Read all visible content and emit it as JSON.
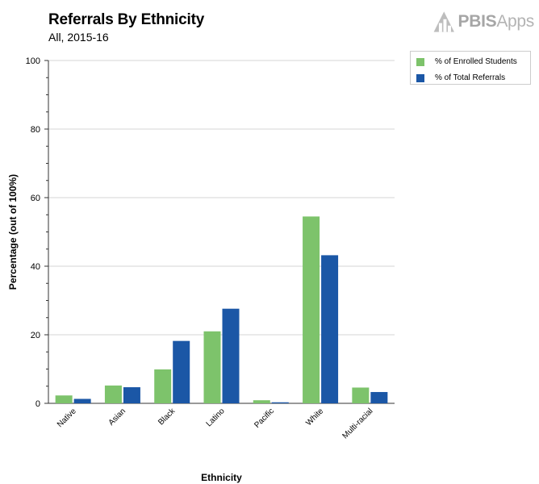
{
  "chart_data": {
    "type": "bar",
    "title": "Referrals By Ethnicity",
    "subtitle": "All, 2015-16",
    "xlabel": "Ethnicity",
    "ylabel": "Percentage (out of 100%)",
    "ylim": [
      0,
      100
    ],
    "yticks": [
      0,
      20,
      40,
      60,
      80,
      100
    ],
    "grid": true,
    "legend_position": "top-right",
    "categories": [
      "Native",
      "Asian",
      "Black",
      "Latino",
      "Pacific",
      "White",
      "Multi-racial"
    ],
    "series": [
      {
        "name": "% of Enrolled Students",
        "color": "#7dc36b",
        "values": [
          2.3,
          5.2,
          9.9,
          21.0,
          0.9,
          54.5,
          4.6
        ]
      },
      {
        "name": "% of Total Referrals",
        "color": "#1b57a6",
        "values": [
          1.3,
          4.7,
          18.2,
          27.6,
          0.3,
          43.2,
          3.3
        ]
      }
    ]
  },
  "logo": {
    "text": "PBISApps",
    "strong": "PBIS",
    "light": "Apps",
    "icon": "pbis-triangle-icon"
  }
}
